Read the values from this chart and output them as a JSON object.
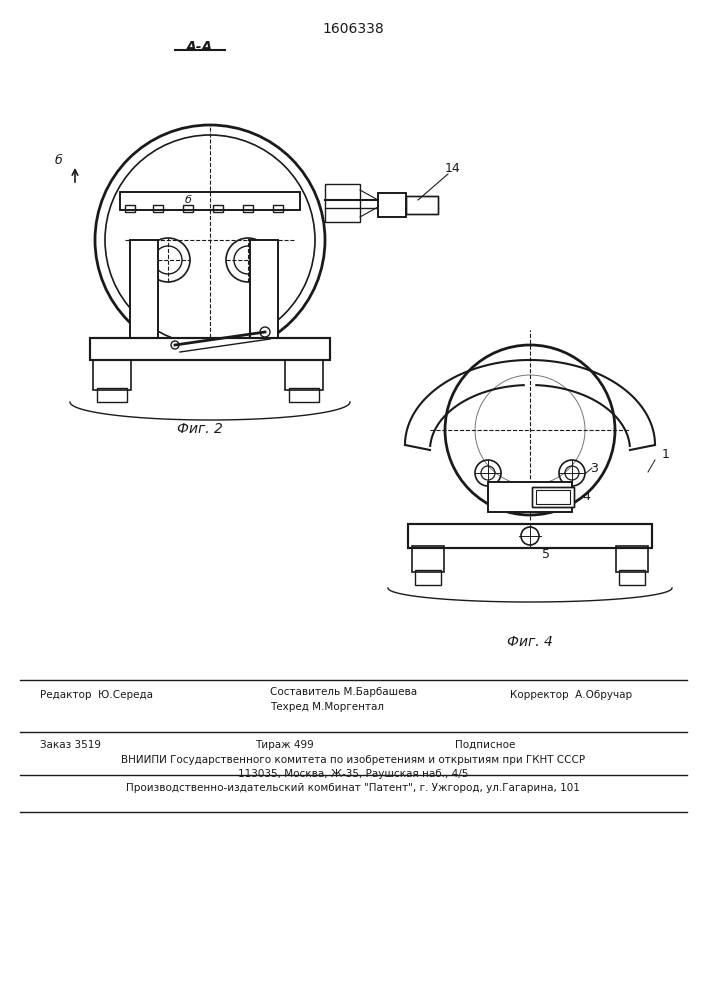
{
  "patent_number": "1606338",
  "fig2_label": "Фиг. 2",
  "fig4_label": "Фиг. 4",
  "section_label": "А-А",
  "arrow_label": "б",
  "label_b": "б",
  "label_14": "14",
  "label_3": "3",
  "label_4": "4",
  "label_1": "1",
  "label_5": "5",
  "footer_col1_row1": "Редактор  Ю.Середа",
  "footer_col2_row1a": "Составитель М.Барбашева",
  "footer_col2_row1b": "Техред М.Моргентал",
  "footer_col3_row1": "Корректор  А.Обручар",
  "footer_order": "Заказ 3519",
  "footer_tirazh": "Тираж 499",
  "footer_podp": "Подписное",
  "footer_line3": "ВНИИПИ Государственного комитета по изобретениям и открытиям при ГКНТ СССР",
  "footer_line4": "113035, Москва, Ж-35, Раушская наб., 4/5",
  "footer_line5": "Производственно-издательский комбинат \"Патент\", г. Ужгород, ул.Гагарина, 101",
  "bg_color": "#ffffff",
  "line_color": "#1a1a1a",
  "text_color": "#1a1a1a"
}
